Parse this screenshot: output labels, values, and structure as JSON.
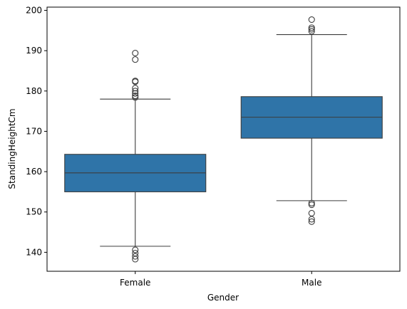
{
  "chart_data": {
    "type": "box",
    "title": "",
    "xlabel": "Gender",
    "ylabel": "StandingHeightCm",
    "ylim": [
      135.3,
      200.8
    ],
    "yticks": [
      140,
      150,
      160,
      170,
      180,
      190,
      200
    ],
    "categories": [
      "Female",
      "Male"
    ],
    "grid": false,
    "legend": "none",
    "box_color": "#2f74a8",
    "line_color": "#3d3d3d",
    "boxes": [
      {
        "category": "Female",
        "whisker_low": 141.5,
        "q1": 155.0,
        "median": 159.7,
        "q3": 164.3,
        "whisker_high": 178.0,
        "outliers": [
          138.3,
          139.0,
          139.8,
          140.6,
          178.4,
          178.8,
          179.4,
          180.0,
          180.7,
          182.3,
          182.5,
          187.8,
          189.4
        ]
      },
      {
        "category": "Male",
        "whisker_low": 152.8,
        "q1": 168.3,
        "median": 173.5,
        "q3": 178.6,
        "whisker_high": 194.0,
        "outliers": [
          147.6,
          148.2,
          149.7,
          151.8,
          152.2,
          194.8,
          195.3,
          195.7,
          197.7
        ]
      }
    ]
  }
}
